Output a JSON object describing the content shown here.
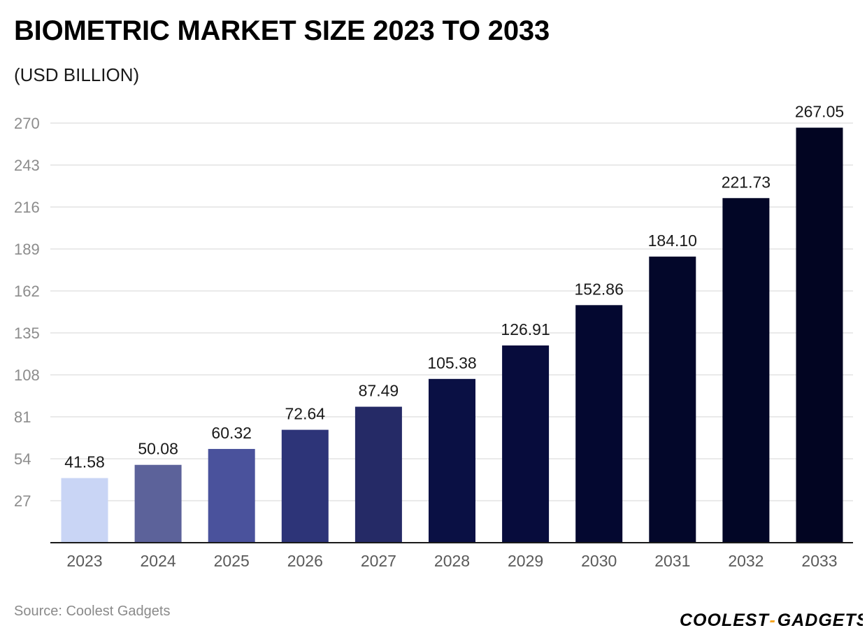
{
  "header": {
    "title": "BIOMETRIC MARKET SIZE 2023 TO 2033",
    "subtitle": "(USD BILLION)"
  },
  "footer": {
    "source": "Source: Coolest Gadgets",
    "logo_text": "COOLEST-GADGETS",
    "logo_left": "COOLEST",
    "logo_dash": "-",
    "logo_right": "GADGETS",
    "logo_accent": "#f5a623"
  },
  "chart_data": {
    "type": "bar",
    "title": "BIOMETRIC MARKET SIZE 2023 TO 2033",
    "subtitle": "(USD BILLION)",
    "xlabel": "",
    "ylabel": "",
    "categories": [
      "2023",
      "2024",
      "2025",
      "2026",
      "2027",
      "2028",
      "2029",
      "2030",
      "2031",
      "2032",
      "2033"
    ],
    "values": [
      41.58,
      50.08,
      60.32,
      72.64,
      87.49,
      105.38,
      126.91,
      152.86,
      184.1,
      221.73,
      267.05
    ],
    "value_labels": [
      "41.58",
      "50.08",
      "60.32",
      "72.64",
      "87.49",
      "105.38",
      "126.91",
      "152.86",
      "184.10",
      "221.73",
      "267.05"
    ],
    "yticks": [
      27,
      54,
      81,
      108,
      135,
      162,
      189,
      216,
      243,
      270
    ],
    "ylim": [
      0,
      270
    ],
    "grid": true,
    "legend": "none",
    "bar_colors": [
      "#c9d5f5",
      "#5c629a",
      "#4a529c",
      "#2d3478",
      "#252a66",
      "#0a1044",
      "#070c3c",
      "#040830",
      "#03072a",
      "#020626",
      "#020522"
    ]
  }
}
